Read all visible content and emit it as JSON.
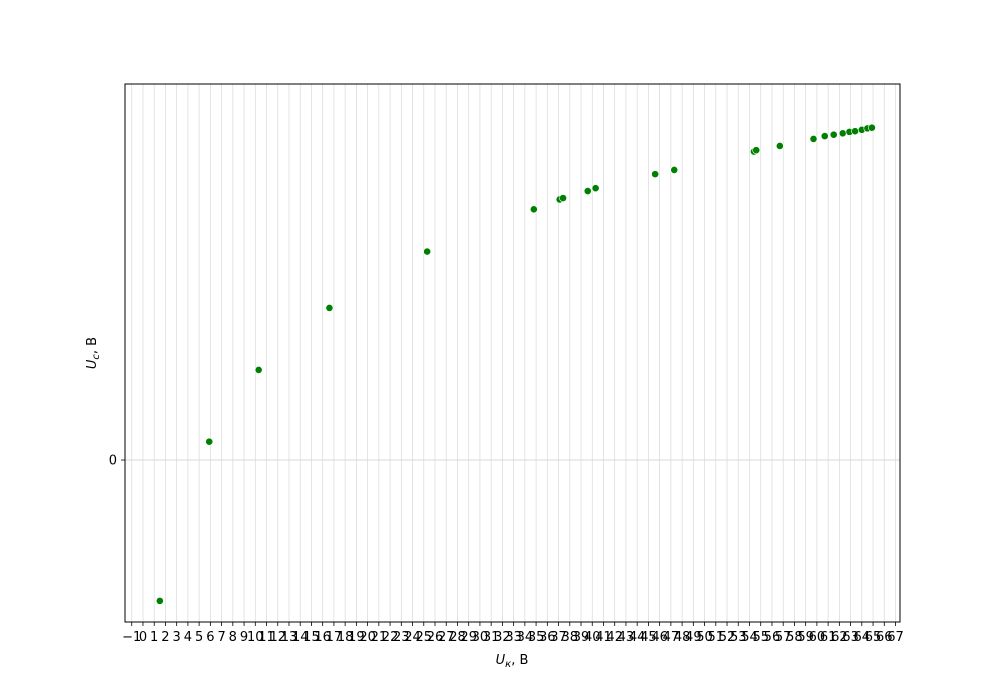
{
  "chart_data": {
    "type": "scatter",
    "xlabel": "U_к, В",
    "ylabel": "U_с, В",
    "xlim": [
      -1.6,
      67.4
    ],
    "ylim": [
      -11.5,
      26.7
    ],
    "x_tick_labels": [
      "−1",
      "0",
      "1",
      "2",
      "3",
      "4",
      "5",
      "6",
      "7",
      "8",
      "9",
      "10",
      "11",
      "12",
      "13",
      "14",
      "15",
      "16",
      "17",
      "18",
      "19",
      "20",
      "21",
      "22",
      "23",
      "24",
      "25",
      "26",
      "27",
      "28",
      "29",
      "30",
      "31",
      "32",
      "33",
      "34",
      "35",
      "36",
      "37",
      "38",
      "39",
      "40",
      "41",
      "42",
      "43",
      "44",
      "45",
      "46",
      "47",
      "48",
      "49",
      "50",
      "51",
      "52",
      "53",
      "54",
      "55",
      "56",
      "57",
      "58",
      "59",
      "60",
      "61",
      "62",
      "63",
      "64",
      "65",
      "66",
      "67"
    ],
    "y_ticks": [
      0
    ],
    "y_tick_labels": [
      "0"
    ],
    "grid": true,
    "color": "#008000",
    "points": [
      {
        "x": 1.5,
        "y": -10.0
      },
      {
        "x": 5.9,
        "y": 1.3
      },
      {
        "x": 10.3,
        "y": 6.4
      },
      {
        "x": 16.6,
        "y": 10.8
      },
      {
        "x": 25.3,
        "y": 14.8
      },
      {
        "x": 34.8,
        "y": 17.8
      },
      {
        "x": 37.1,
        "y": 18.5
      },
      {
        "x": 37.4,
        "y": 18.6
      },
      {
        "x": 39.6,
        "y": 19.1
      },
      {
        "x": 40.3,
        "y": 19.3
      },
      {
        "x": 45.6,
        "y": 20.3
      },
      {
        "x": 47.3,
        "y": 20.6
      },
      {
        "x": 54.4,
        "y": 21.9
      },
      {
        "x": 54.6,
        "y": 22.0
      },
      {
        "x": 56.7,
        "y": 22.3
      },
      {
        "x": 59.7,
        "y": 22.8
      },
      {
        "x": 60.7,
        "y": 23.0
      },
      {
        "x": 61.5,
        "y": 23.1
      },
      {
        "x": 62.3,
        "y": 23.2
      },
      {
        "x": 62.9,
        "y": 23.3
      },
      {
        "x": 63.4,
        "y": 23.35
      },
      {
        "x": 64.0,
        "y": 23.45
      },
      {
        "x": 64.5,
        "y": 23.55
      },
      {
        "x": 64.9,
        "y": 23.6
      }
    ]
  }
}
